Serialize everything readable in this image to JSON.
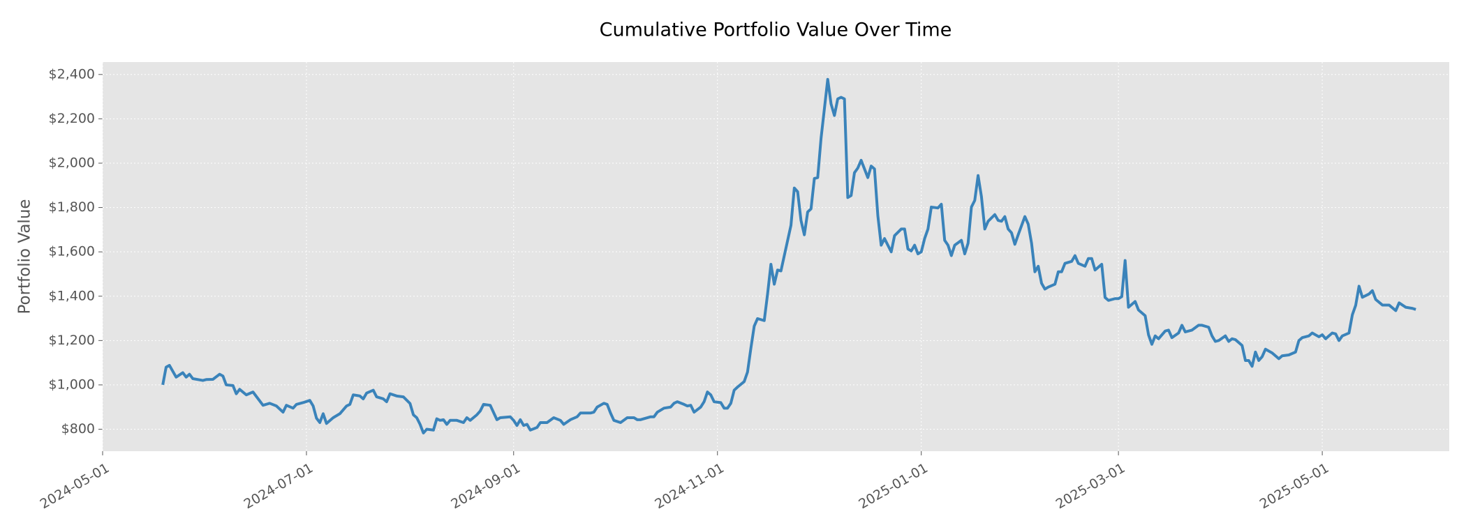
{
  "chart_data": {
    "type": "line",
    "title": "Cumulative Portfolio Value Over Time",
    "ylabel": "Portfolio Value",
    "grid": true,
    "xlim": [
      "2024-05-01",
      "2025-06-08"
    ],
    "ylim": [
      701,
      2456
    ],
    "xticks": [
      "2024-05-01",
      "2024-07-01",
      "2024-09-01",
      "2024-11-01",
      "2025-01-01",
      "2025-03-01",
      "2025-05-01"
    ],
    "yticks": [
      {
        "value": 800,
        "label": "$800"
      },
      {
        "value": 1000,
        "label": "$1,000"
      },
      {
        "value": 1200,
        "label": "$1,200"
      },
      {
        "value": 1400,
        "label": "$1,400"
      },
      {
        "value": 1600,
        "label": "$1,600"
      },
      {
        "value": 1800,
        "label": "$1,800"
      },
      {
        "value": 2000,
        "label": "$2,000"
      },
      {
        "value": 2200,
        "label": "$2,200"
      },
      {
        "value": 2400,
        "label": "$2,400"
      }
    ],
    "x": [
      "2024-05-19",
      "2024-05-20",
      "2024-05-21",
      "2024-05-23",
      "2024-05-25",
      "2024-05-26",
      "2024-05-27",
      "2024-05-28",
      "2024-05-31",
      "2024-06-01",
      "2024-06-03",
      "2024-06-05",
      "2024-06-06",
      "2024-06-07",
      "2024-06-09",
      "2024-06-10",
      "2024-06-11",
      "2024-06-13",
      "2024-06-15",
      "2024-06-18",
      "2024-06-20",
      "2024-06-22",
      "2024-06-24",
      "2024-06-25",
      "2024-06-27",
      "2024-06-28",
      "2024-06-30",
      "2024-07-02",
      "2024-07-03",
      "2024-07-04",
      "2024-07-05",
      "2024-07-06",
      "2024-07-07",
      "2024-07-09",
      "2024-07-11",
      "2024-07-13",
      "2024-07-14",
      "2024-07-15",
      "2024-07-17",
      "2024-07-18",
      "2024-07-19",
      "2024-07-21",
      "2024-07-22",
      "2024-07-24",
      "2024-07-25",
      "2024-07-26",
      "2024-07-28",
      "2024-07-30",
      "2024-08-01",
      "2024-08-02",
      "2024-08-03",
      "2024-08-04",
      "2024-08-05",
      "2024-08-06",
      "2024-08-08",
      "2024-08-09",
      "2024-08-10",
      "2024-08-11",
      "2024-08-12",
      "2024-08-13",
      "2024-08-15",
      "2024-08-17",
      "2024-08-18",
      "2024-08-19",
      "2024-08-21",
      "2024-08-22",
      "2024-08-23",
      "2024-08-25",
      "2024-08-27",
      "2024-08-28",
      "2024-08-31",
      "2024-09-01",
      "2024-09-02",
      "2024-09-03",
      "2024-09-04",
      "2024-09-05",
      "2024-09-06",
      "2024-09-08",
      "2024-09-09",
      "2024-09-11",
      "2024-09-13",
      "2024-09-15",
      "2024-09-16",
      "2024-09-18",
      "2024-09-20",
      "2024-09-21",
      "2024-09-24",
      "2024-09-25",
      "2024-09-26",
      "2024-09-28",
      "2024-09-29",
      "2024-09-30",
      "2024-10-01",
      "2024-10-03",
      "2024-10-05",
      "2024-10-07",
      "2024-10-08",
      "2024-10-09",
      "2024-10-12",
      "2024-10-13",
      "2024-10-14",
      "2024-10-16",
      "2024-10-18",
      "2024-10-19",
      "2024-10-20",
      "2024-10-22",
      "2024-10-23",
      "2024-10-24",
      "2024-10-25",
      "2024-10-27",
      "2024-10-28",
      "2024-10-29",
      "2024-10-30",
      "2024-10-31",
      "2024-11-02",
      "2024-11-03",
      "2024-11-04",
      "2024-11-05",
      "2024-11-06",
      "2024-11-07",
      "2024-11-09",
      "2024-11-10",
      "2024-11-11",
      "2024-11-12",
      "2024-11-13",
      "2024-11-15",
      "2024-11-16",
      "2024-11-17",
      "2024-11-18",
      "2024-11-19",
      "2024-11-20",
      "2024-11-21",
      "2024-11-23",
      "2024-11-24",
      "2024-11-25",
      "2024-11-26",
      "2024-11-27",
      "2024-11-28",
      "2024-11-29",
      "2024-11-30",
      "2024-12-01",
      "2024-12-02",
      "2024-12-04",
      "2024-12-05",
      "2024-12-06",
      "2024-12-07",
      "2024-12-08",
      "2024-12-09",
      "2024-12-10",
      "2024-12-11",
      "2024-12-12",
      "2024-12-13",
      "2024-12-14",
      "2024-12-16",
      "2024-12-17",
      "2024-12-18",
      "2024-12-19",
      "2024-12-20",
      "2024-12-21",
      "2024-12-22",
      "2024-12-23",
      "2024-12-24",
      "2024-12-26",
      "2024-12-27",
      "2024-12-28",
      "2024-12-29",
      "2024-12-30",
      "2024-12-31",
      "2025-01-01",
      "2025-01-02",
      "2025-01-03",
      "2025-01-04",
      "2025-01-06",
      "2025-01-07",
      "2025-01-08",
      "2025-01-09",
      "2025-01-10",
      "2025-01-11",
      "2025-01-13",
      "2025-01-14",
      "2025-01-15",
      "2025-01-16",
      "2025-01-17",
      "2025-01-18",
      "2025-01-19",
      "2025-01-20",
      "2025-01-21",
      "2025-01-23",
      "2025-01-24",
      "2025-01-25",
      "2025-01-26",
      "2025-01-27",
      "2025-01-28",
      "2025-01-29",
      "2025-01-30",
      "2025-02-01",
      "2025-02-02",
      "2025-02-03",
      "2025-02-04",
      "2025-02-05",
      "2025-02-06",
      "2025-02-07",
      "2025-02-08",
      "2025-02-10",
      "2025-02-11",
      "2025-02-12",
      "2025-02-13",
      "2025-02-15",
      "2025-02-16",
      "2025-02-17",
      "2025-02-19",
      "2025-02-20",
      "2025-02-21",
      "2025-02-22",
      "2025-02-24",
      "2025-02-25",
      "2025-02-26",
      "2025-02-28",
      "2025-03-01",
      "2025-03-02",
      "2025-03-03",
      "2025-03-04",
      "2025-03-05",
      "2025-03-06",
      "2025-03-07",
      "2025-03-09",
      "2025-03-10",
      "2025-03-11",
      "2025-03-12",
      "2025-03-13",
      "2025-03-15",
      "2025-03-16",
      "2025-03-17",
      "2025-03-19",
      "2025-03-20",
      "2025-03-21",
      "2025-03-23",
      "2025-03-25",
      "2025-03-26",
      "2025-03-28",
      "2025-03-29",
      "2025-03-30",
      "2025-03-31",
      "2025-04-02",
      "2025-04-03",
      "2025-04-04",
      "2025-04-05",
      "2025-04-07",
      "2025-04-08",
      "2025-04-09",
      "2025-04-10",
      "2025-04-11",
      "2025-04-12",
      "2025-04-13",
      "2025-04-14",
      "2025-04-16",
      "2025-04-17",
      "2025-04-18",
      "2025-04-19",
      "2025-04-21",
      "2025-04-23",
      "2025-04-24",
      "2025-04-25",
      "2025-04-27",
      "2025-04-28",
      "2025-04-30",
      "2025-05-01",
      "2025-05-02",
      "2025-05-04",
      "2025-05-05",
      "2025-05-06",
      "2025-05-07",
      "2025-05-09",
      "2025-05-10",
      "2025-05-11",
      "2025-05-12",
      "2025-05-13",
      "2025-05-15",
      "2025-05-16",
      "2025-05-17",
      "2025-05-19",
      "2025-05-21",
      "2025-05-23",
      "2025-05-24",
      "2025-05-26",
      "2025-05-28",
      "2025-05-29"
    ],
    "series": [
      {
        "name": "Portfolio Value",
        "color": "#3a83ba",
        "values": [
          1000,
          1080,
          1088,
          1035,
          1055,
          1035,
          1048,
          1028,
          1020,
          1024,
          1025,
          1048,
          1040,
          1000,
          997,
          960,
          980,
          955,
          968,
          908,
          917,
          905,
          877,
          908,
          895,
          912,
          920,
          930,
          905,
          850,
          830,
          870,
          826,
          852,
          870,
          905,
          912,
          955,
          950,
          937,
          963,
          976,
          946,
          937,
          924,
          960,
          950,
          946,
          916,
          865,
          852,
          822,
          783,
          800,
          796,
          847,
          840,
          843,
          822,
          840,
          840,
          830,
          852,
          840,
          865,
          882,
          912,
          908,
          843,
          852,
          856,
          840,
          817,
          843,
          817,
          822,
          796,
          808,
          830,
          830,
          852,
          840,
          822,
          843,
          856,
          873,
          873,
          877,
          900,
          917,
          912,
          873,
          840,
          830,
          852,
          852,
          843,
          843,
          856,
          856,
          877,
          895,
          900,
          917,
          924,
          912,
          905,
          908,
          877,
          900,
          924,
          968,
          955,
          924,
          920,
          895,
          895,
          917,
          976,
          990,
          1015,
          1058,
          1165,
          1265,
          1299,
          1290,
          1410,
          1544,
          1454,
          1518,
          1514,
          1583,
          1720,
          1888,
          1871,
          1742,
          1677,
          1780,
          1794,
          1931,
          1935,
          2112,
          2378,
          2267,
          2215,
          2290,
          2297,
          2290,
          1845,
          1854,
          1957,
          1978,
          2013,
          1935,
          1987,
          1974,
          1763,
          1630,
          1660,
          1630,
          1600,
          1673,
          1703,
          1703,
          1613,
          1604,
          1630,
          1591,
          1600,
          1660,
          1703,
          1802,
          1798,
          1815,
          1652,
          1630,
          1583,
          1630,
          1652,
          1591,
          1639,
          1802,
          1832,
          1944,
          1849,
          1703,
          1738,
          1768,
          1742,
          1738,
          1759,
          1703,
          1686,
          1634,
          1677,
          1759,
          1725,
          1639,
          1510,
          1535,
          1458,
          1432,
          1441,
          1454,
          1510,
          1510,
          1548,
          1557,
          1583,
          1548,
          1535,
          1570,
          1570,
          1518,
          1544,
          1394,
          1381,
          1389,
          1389,
          1398,
          1561,
          1350,
          1363,
          1376,
          1338,
          1312,
          1226,
          1183,
          1221,
          1208,
          1243,
          1247,
          1213,
          1234,
          1269,
          1239,
          1247,
          1269,
          1269,
          1260,
          1221,
          1196,
          1200,
          1221,
          1196,
          1208,
          1204,
          1178,
          1110,
          1110,
          1084,
          1148,
          1110,
          1127,
          1161,
          1144,
          1131,
          1118,
          1131,
          1135,
          1148,
          1200,
          1213,
          1221,
          1234,
          1217,
          1226,
          1208,
          1234,
          1230,
          1200,
          1221,
          1234,
          1316,
          1359,
          1445,
          1395,
          1410,
          1425,
          1385,
          1360,
          1360,
          1335,
          1370,
          1350,
          1345,
          1340
        ]
      }
    ]
  }
}
